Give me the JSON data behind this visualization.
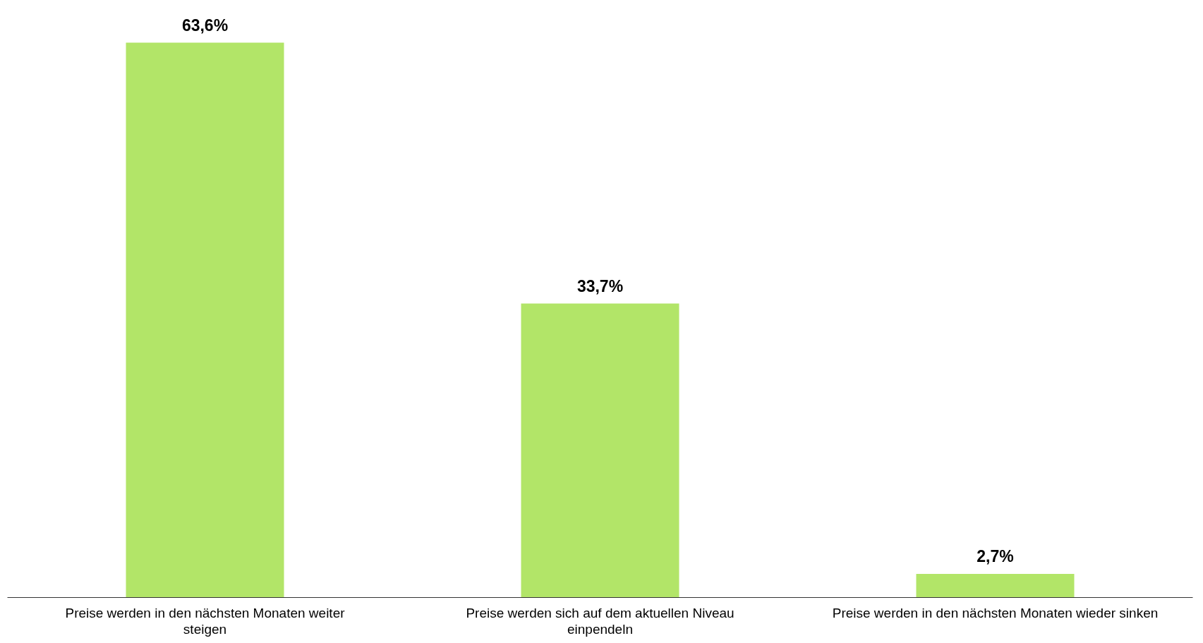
{
  "chart_data": {
    "type": "bar",
    "categories": [
      "Preise werden in den nächsten Monaten weiter steigen",
      "Preise werden sich auf dem aktuellen Niveau einpendeln",
      "Preise werden in den nächsten Monaten wieder sinken"
    ],
    "values": [
      63.6,
      33.7,
      2.7
    ],
    "value_labels": [
      "63,6%",
      "33,7%",
      "2,7%"
    ],
    "color": "#b2e568",
    "grid": false,
    "tick_labels": "x"
  }
}
